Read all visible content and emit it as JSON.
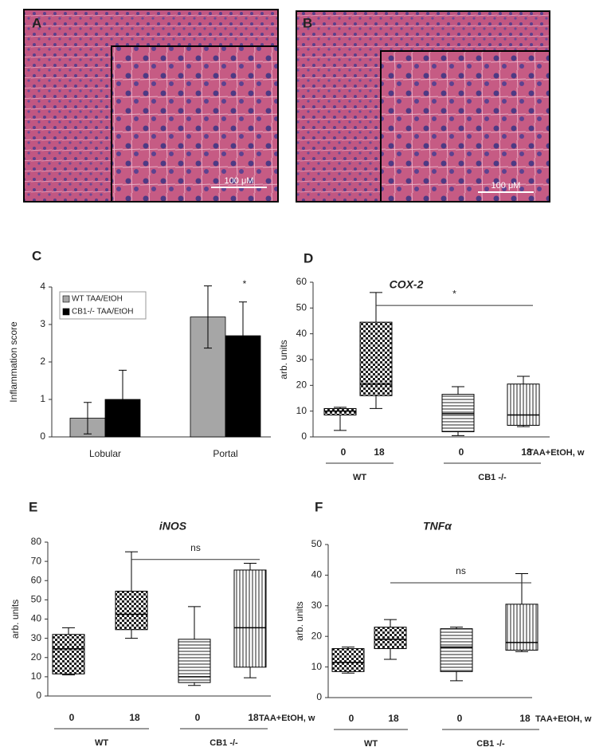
{
  "images": [
    {
      "label": "A",
      "scale": "100 μM"
    },
    {
      "label": "B",
      "scale": "100 μM"
    }
  ],
  "chart_data": [
    {
      "type": "bar",
      "panel": "C",
      "ylabel": "Inflammation score",
      "categories": [
        "Lobular",
        "Portal"
      ],
      "series": [
        {
          "name": "WT TAA/EtOH",
          "color": "#a6a6a6",
          "values": [
            0.5,
            3.2
          ],
          "errors": [
            0.42,
            0.83
          ]
        },
        {
          "name": "CB1-/- TAA/EtOH",
          "color": "#000000",
          "values": [
            1.0,
            2.7
          ],
          "errors": [
            0.78,
            0.9
          ]
        }
      ],
      "ylim": [
        0,
        4
      ],
      "yticks": [
        0,
        1,
        2,
        3,
        4
      ],
      "annotation": "*",
      "legend": "upper left"
    },
    {
      "type": "box",
      "panel": "D",
      "title": "COX-2",
      "ylabel": "arb. units",
      "xlabel": "TAA+EtOH, w",
      "categories": [
        "0",
        "18",
        "0",
        "18"
      ],
      "groups": [
        "WT",
        "CB1 -/-"
      ],
      "fills": [
        "checker",
        "checker",
        "horizontal",
        "vertical"
      ],
      "min": [
        2.5,
        11,
        0.5,
        4
      ],
      "q1": [
        8.5,
        16,
        2,
        4.5
      ],
      "median": [
        10,
        20.5,
        9,
        8.5
      ],
      "q3": [
        11,
        44.5,
        16.5,
        20.5
      ],
      "max": [
        11.5,
        56,
        19.5,
        23.5
      ],
      "ylim": [
        0,
        60
      ],
      "yticks": [
        0,
        10,
        20,
        30,
        40,
        50,
        60
      ],
      "annotation": {
        "text": "*",
        "y": 51
      }
    },
    {
      "type": "box",
      "panel": "E",
      "title": "iNOS",
      "ylabel": "arb. units",
      "xlabel": "TAA+EtOH, w",
      "categories": [
        "0",
        "18",
        "0",
        "18"
      ],
      "groups": [
        "WT",
        "CB1 -/-"
      ],
      "fills": [
        "checker",
        "checker",
        "horizontal",
        "vertical"
      ],
      "min": [
        11,
        30,
        5.5,
        9.5
      ],
      "q1": [
        11.5,
        34.5,
        7,
        15
      ],
      "median": [
        24.5,
        42.5,
        10,
        35.5
      ],
      "q3": [
        32,
        54.5,
        29.5,
        65.5
      ],
      "max": [
        35.5,
        75,
        46.5,
        69
      ],
      "ylim": [
        0,
        80
      ],
      "yticks": [
        0,
        10,
        20,
        30,
        40,
        50,
        60,
        70,
        80
      ],
      "annotation": {
        "text": "ns",
        "y": 71
      }
    },
    {
      "type": "box",
      "panel": "F",
      "title": "TNFα",
      "ylabel": "arb. units",
      "xlabel": "TAA+EtOH, w",
      "categories": [
        "0",
        "18",
        "0",
        "18"
      ],
      "groups": [
        "WT",
        "CB1 -/-"
      ],
      "fills": [
        "checker",
        "checker",
        "horizontal",
        "vertical"
      ],
      "min": [
        8,
        12.5,
        5.5,
        15
      ],
      "q1": [
        8.5,
        16,
        8.5,
        15.5
      ],
      "median": [
        11.5,
        19,
        16.5,
        18
      ],
      "q3": [
        16,
        23,
        22.5,
        30.5
      ],
      "max": [
        16.5,
        25.5,
        23,
        40.5
      ],
      "ylim": [
        0,
        50
      ],
      "yticks": [
        0,
        10,
        20,
        30,
        40,
        50
      ],
      "annotation": {
        "text": "ns",
        "y": 37.5
      }
    }
  ]
}
